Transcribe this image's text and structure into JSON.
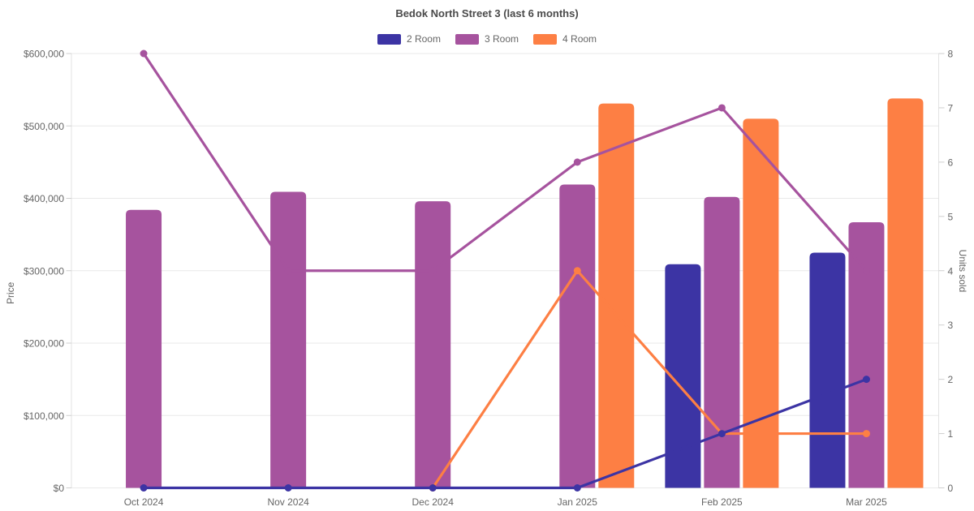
{
  "chart": {
    "title": "Bedok North Street 3 (last 6 months)",
    "y_left_label": "Price",
    "y_right_label": "Units sold"
  },
  "chart_data": {
    "type": "bar+line",
    "title": "Bedok North Street 3 (last 6 months)",
    "categories": [
      "Oct 2024",
      "Nov 2024",
      "Dec 2024",
      "Jan 2025",
      "Feb 2025",
      "Mar 2025"
    ],
    "series": [
      {
        "name": "2 Room",
        "color": "#3c34a4",
        "price_bars": [
          null,
          null,
          null,
          null,
          309000,
          325000
        ],
        "units_line": [
          0,
          0,
          0,
          0,
          1,
          2
        ]
      },
      {
        "name": "3 Room",
        "color": "#a6539e",
        "price_bars": [
          384000,
          409000,
          396000,
          419000,
          402000,
          367000
        ],
        "units_line": [
          8,
          4,
          4,
          6,
          7,
          4
        ]
      },
      {
        "name": "4 Room",
        "color": "#fd7f44",
        "price_bars": [
          null,
          null,
          null,
          531000,
          510000,
          538000
        ],
        "units_line": [
          null,
          null,
          0,
          4,
          1,
          1
        ]
      }
    ],
    "left_axis": {
      "label": "Price",
      "min": 0,
      "max": 600000,
      "step": 100000,
      "tick_labels": [
        "$0",
        "$100,000",
        "$200,000",
        "$300,000",
        "$400,000",
        "$500,000",
        "$600,000"
      ]
    },
    "right_axis": {
      "label": "Units sold",
      "min": 0,
      "max": 8,
      "step": 1,
      "tick_labels": [
        "0",
        "1",
        "2",
        "3",
        "4",
        "5",
        "6",
        "7",
        "8"
      ]
    },
    "legend_position": "top",
    "grid": "horizontal-left-axis-ticks-only",
    "colors": {
      "grid_line": "#e9e9e9",
      "axis_border": "#e3e3e3",
      "tick_mark": "#cfcfcf",
      "tick_text": "#666666",
      "title_text": "#4a4a4a"
    }
  }
}
